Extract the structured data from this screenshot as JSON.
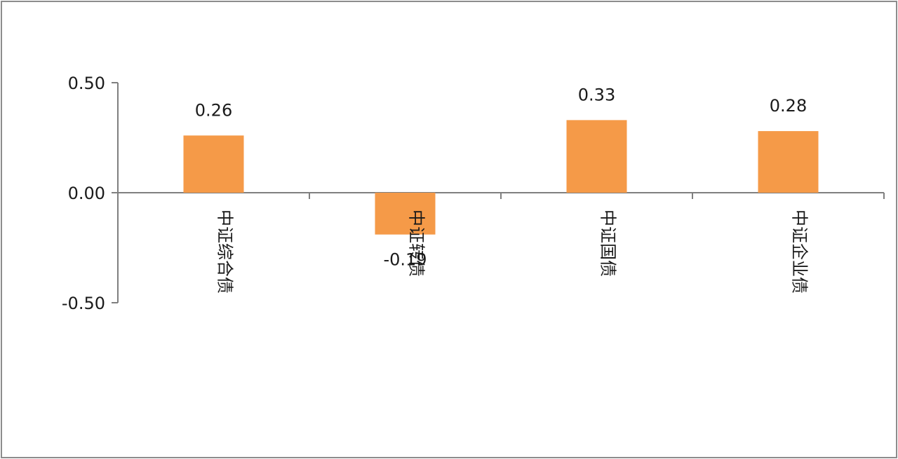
{
  "chart_data": {
    "type": "bar",
    "categories": [
      "中证综合债",
      "中证转债",
      "中证国债",
      "中证企业债"
    ],
    "values": [
      0.26,
      -0.19,
      0.33,
      0.28
    ],
    "data_labels": [
      "0.26",
      "-0.19",
      "0.33",
      "0.28"
    ],
    "y_ticks": [
      "0.50",
      "0.00",
      "-0.50"
    ],
    "y_tick_values": [
      0.5,
      0,
      -0.5
    ],
    "ylim": [
      -0.5,
      0.5
    ],
    "title": "",
    "xlabel": "",
    "ylabel": "",
    "grid": false,
    "legend": "none",
    "bar_color": "#F59A48",
    "axis_color": "#7F7F7F"
  }
}
